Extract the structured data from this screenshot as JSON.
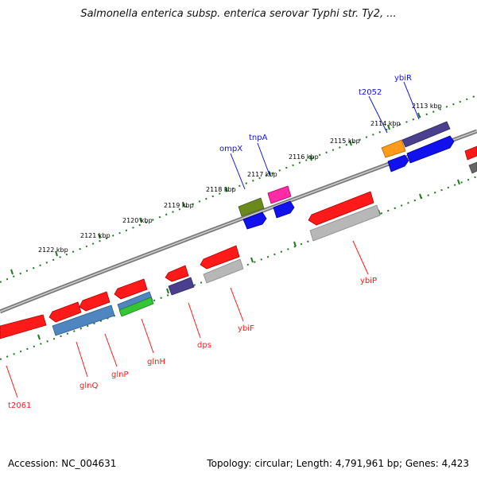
{
  "title": "Salmonella enterica subsp. enterica serovar Typhi str. Ty2, ...",
  "footer": {
    "accession": "Accession: NC_004631",
    "summary": "Topology: circular; Length: 4,791,961 bp; Genes: 4,423"
  },
  "ticks": [
    "2113 kbp",
    "2114 kbp",
    "2115 kbp",
    "2116 kbp",
    "2117 kbp",
    "2118 kbp",
    "2119 kbp",
    "2120 kbp",
    "2121 kbp",
    "2122 kbp"
  ],
  "labels_top": [
    "t2052",
    "ybiR",
    "ompX",
    "tnpA"
  ],
  "labels_bottom": [
    "ybiP",
    "ybiF",
    "dps",
    "glnH",
    "glnP",
    "glnQ",
    "t2061"
  ],
  "colors": {
    "red": "#ff1a1a",
    "blue": "#1111ee",
    "navy": "#4a3f8f",
    "orange": "#ff9a1a",
    "olive": "#6b8a1e",
    "pink": "#ff2aa6",
    "gray": "#b7b7b7",
    "steel": "#4f86c0",
    "green": "#35c535",
    "dark-gray": "#666666"
  }
}
